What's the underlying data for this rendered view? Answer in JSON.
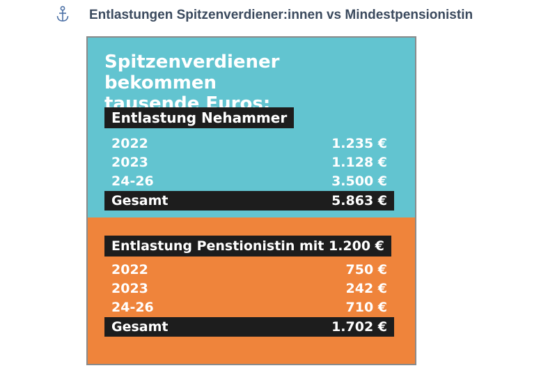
{
  "page": {
    "heading": "Entlastungen Spitzenverdiener:innen vs Mindestpensionistin",
    "icon": "anchor-icon",
    "heading_color": "#3b4a5e"
  },
  "card": {
    "headline_line1": "Spitzenverdiener bekommen",
    "headline_line2": "tausende Euros:",
    "top_color": "#62c4d0",
    "bottom_color": "#ef843b",
    "section1": {
      "label": "Entlastung Nehammer",
      "rows": [
        {
          "year": "2022",
          "amount": "1.235 €"
        },
        {
          "year": "2023",
          "amount": "1.128 €"
        },
        {
          "year": "24-26",
          "amount": "3.500 €"
        }
      ],
      "total_label": "Gesamt",
      "total_amount": "5.863 €"
    },
    "section2": {
      "label": "Entlastung Penstionistin mit 1.200 €",
      "rows": [
        {
          "year": "2022",
          "amount": "750 €"
        },
        {
          "year": "2023",
          "amount": "242 €"
        },
        {
          "year": "24-26",
          "amount": "710 €"
        }
      ],
      "total_label": "Gesamt",
      "total_amount": "1.702 €"
    }
  }
}
